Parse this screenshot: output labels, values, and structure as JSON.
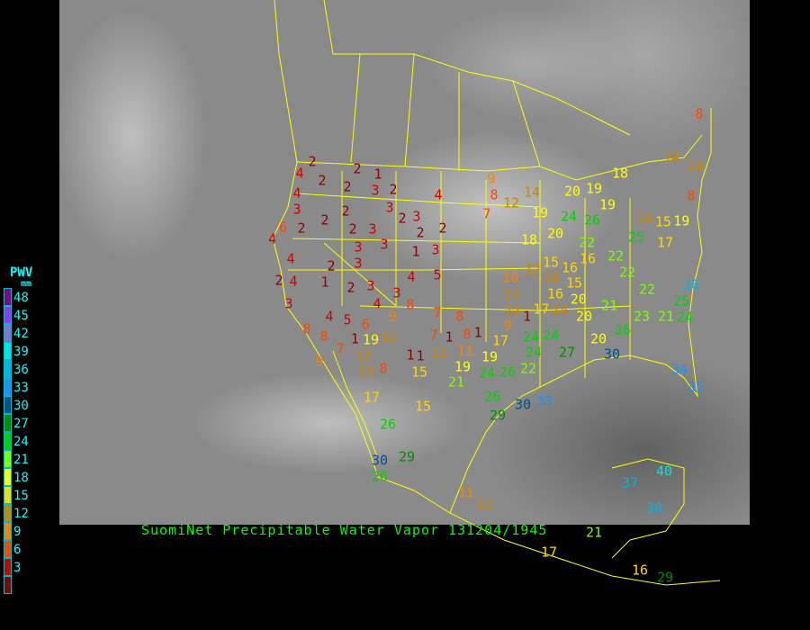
{
  "title": "SuomiNet Precipitable Water Vapor 131204/1945",
  "legend": {
    "title": "PWV",
    "unit": "mm",
    "bins": [
      {
        "label": "48",
        "color": "#8b008b"
      },
      {
        "label": "45",
        "color": "#9933ff"
      },
      {
        "label": "42",
        "color": "#8a70d0"
      },
      {
        "label": "39",
        "color": "#00e5e5"
      },
      {
        "label": "36",
        "color": "#00b4e6"
      },
      {
        "label": "33",
        "color": "#1e8fff"
      },
      {
        "label": "30",
        "color": "#00508c"
      },
      {
        "label": "27",
        "color": "#008c00"
      },
      {
        "label": "24",
        "color": "#00d200"
      },
      {
        "label": "21",
        "color": "#7cff00"
      },
      {
        "label": "18",
        "color": "#ffff00"
      },
      {
        "label": "15",
        "color": "#ffd700"
      },
      {
        "label": "12",
        "color": "#cd8500"
      },
      {
        "label": "9",
        "color": "#ff8000"
      },
      {
        "label": "6",
        "color": "#ff4500"
      },
      {
        "label": "3",
        "color": "#d00000"
      },
      {
        "label": "",
        "color": "#8b0000"
      }
    ]
  },
  "stations": [
    "4",
    "2",
    "2",
    "2",
    "1",
    "2",
    "3",
    "2",
    "4",
    "4",
    "3",
    "2",
    "2",
    "2",
    "2",
    "3",
    "3",
    "2",
    "3",
    "2",
    "2",
    "1",
    "3",
    "3",
    "3",
    "2",
    "3",
    "1",
    "2",
    "3",
    "4",
    "5",
    "4",
    "6",
    "4",
    "4",
    "2",
    "3",
    "4",
    "3",
    "8",
    "4",
    "5",
    "6",
    "8",
    "8",
    "7",
    "1",
    "9",
    "12",
    "19",
    "12",
    "13",
    "8",
    "1",
    "1",
    "15",
    "7",
    "8",
    "9",
    "7",
    "1",
    "8",
    "11",
    "12",
    "1",
    "9",
    "17",
    "19",
    "19",
    "21",
    "24",
    "26",
    "24",
    "24",
    "24",
    "22",
    "27",
    "15",
    "17",
    "26",
    "26",
    "29",
    "30",
    "33",
    "30",
    "26",
    "29",
    "11",
    "12",
    "37",
    "40",
    "38",
    "21",
    "17",
    "16",
    "29",
    "9",
    "8",
    "12",
    "7",
    "14",
    "19",
    "18",
    "20",
    "20",
    "19",
    "24",
    "26",
    "22",
    "15",
    "16",
    "10",
    "12",
    "14",
    "15",
    "14",
    "12",
    "17",
    "14",
    "20",
    "16",
    "1",
    "20",
    "21",
    "26",
    "23",
    "20",
    "30",
    "22",
    "22",
    "22",
    "25",
    "18",
    "19",
    "14",
    "15",
    "17",
    "19",
    "8",
    "14",
    "14",
    "8",
    "24",
    "25",
    "21",
    "34",
    "35",
    "36",
    "16"
  ]
}
